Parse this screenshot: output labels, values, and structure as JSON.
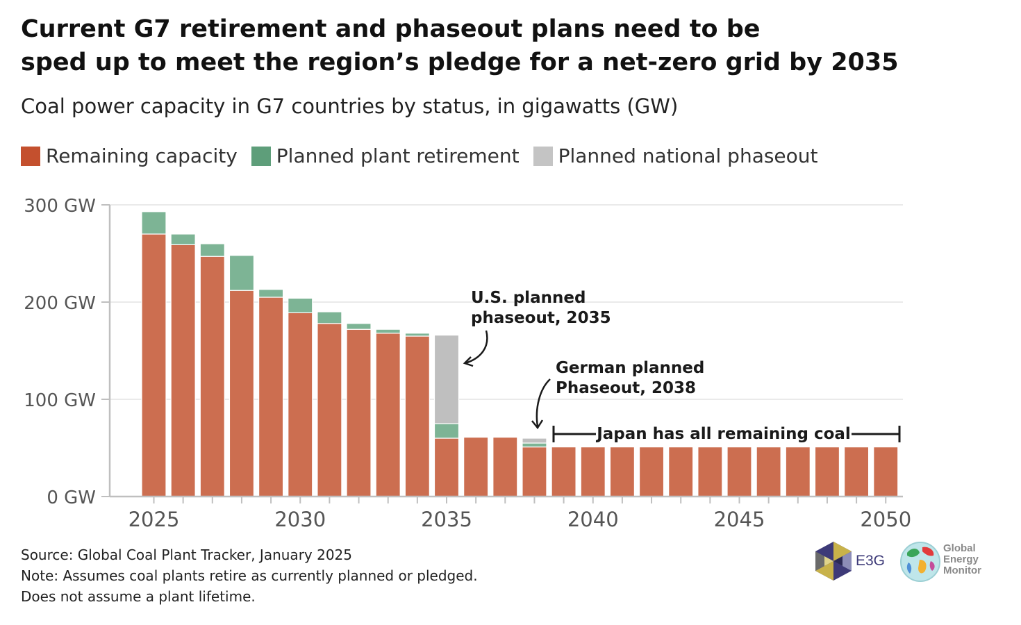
{
  "title_line1": "Current G7 retirement and phaseout plans need to be",
  "title_line2": "sped up to meet the region’s pledge for a net-zero grid by 2035",
  "subtitle": "Coal power capacity in G7 countries by status, in gigawatts (GW)",
  "colors": {
    "remaining": "#cc6e50",
    "retirement": "#7db495",
    "phaseout": "#bfbfbf",
    "legend_remaining": "#c4502e",
    "legend_retirement": "#5e9e7a",
    "legend_phaseout": "#c4c4c4"
  },
  "chart_data": {
    "type": "bar",
    "stacked": true,
    "x": [
      2025,
      2026,
      2027,
      2028,
      2029,
      2030,
      2031,
      2032,
      2033,
      2034,
      2035,
      2036,
      2037,
      2038,
      2039,
      2040,
      2041,
      2042,
      2043,
      2044,
      2045,
      2046,
      2047,
      2048,
      2049,
      2050
    ],
    "series": [
      {
        "name": "Remaining capacity",
        "values": [
          270,
          259,
          247,
          212,
          205,
          189,
          178,
          172,
          168,
          165,
          60,
          61,
          61,
          51,
          51,
          51,
          51,
          51,
          51,
          51,
          51,
          51,
          51,
          51,
          51,
          51
        ]
      },
      {
        "name": "Planned plant retirement",
        "values": [
          23,
          11,
          13,
          36,
          8,
          15,
          12,
          6,
          4,
          3,
          15,
          0,
          0,
          4,
          0,
          0,
          0,
          0,
          0,
          0,
          0,
          0,
          0,
          0,
          0,
          0
        ]
      },
      {
        "name": "Planned national phaseout",
        "values": [
          0,
          0,
          0,
          0,
          0,
          0,
          0,
          0,
          0,
          0,
          91,
          0,
          0,
          5,
          0,
          0,
          0,
          0,
          0,
          0,
          0,
          0,
          0,
          0,
          0,
          0
        ]
      }
    ],
    "ylim": [
      0,
      300
    ],
    "yticks": [
      0,
      100,
      200,
      300
    ],
    "ytick_labels": [
      "0 GW",
      "100 GW",
      "200 GW",
      "300 GW"
    ],
    "xticks": [
      2025,
      2030,
      2035,
      2040,
      2045,
      2050
    ],
    "grid": true,
    "legend_position": "top-left",
    "annotations": {
      "us_line1": "U.S. planned",
      "us_line2": "phaseout, 2035",
      "germany_line1": "German planned",
      "germany_line2": "Phaseout, 2038",
      "japan": "Japan has all remaining coal"
    }
  },
  "footer": {
    "source": "Source: Global Coal Plant Tracker, January 2025",
    "note_line1": "Note: Assumes coal plants retire as currently planned or pledged.",
    "note_line2": "Does not assume a plant lifetime."
  },
  "logos": {
    "e3g": "E3G",
    "gem_line1": "Global",
    "gem_line2": "Energy",
    "gem_line3": "Monitor"
  }
}
